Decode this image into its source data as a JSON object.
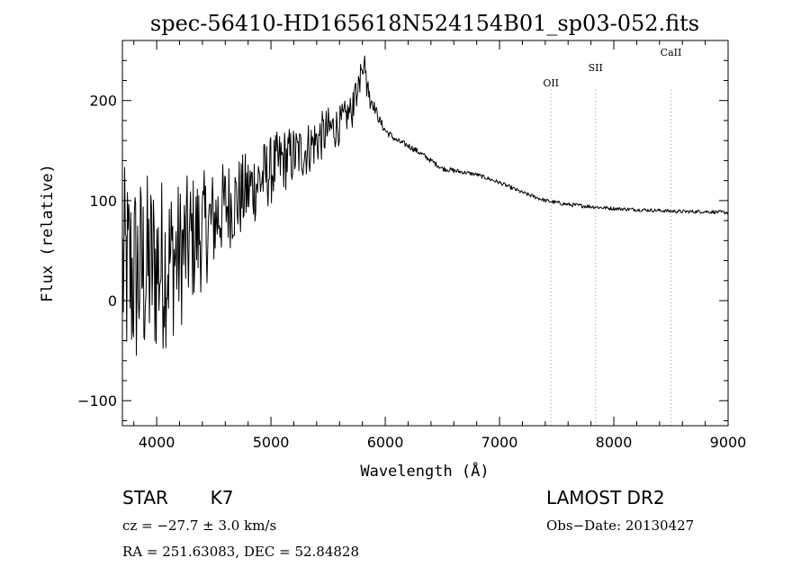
{
  "chart_data": {
    "type": "line",
    "title": "spec-56410-HD165618N524154B01_sp03-052.fits",
    "xlabel": "Wavelength (Å)",
    "ylabel": "Flux (relative)",
    "xlim": [
      3700,
      9000
    ],
    "ylim": [
      -125,
      260
    ],
    "x_ticks": [
      4000,
      5000,
      6000,
      7000,
      8000,
      9000
    ],
    "y_ticks": [
      -100,
      0,
      100,
      200
    ],
    "grid": false,
    "series": [
      {
        "x": [
          3700,
          3800,
          3900,
          4000,
          4100,
          4200,
          4300,
          4400,
          4500,
          4600,
          4700,
          4800,
          4900,
          5000,
          5100,
          5200,
          5300,
          5400,
          5500,
          5600,
          5700,
          5750,
          5800,
          5830,
          5850,
          5900,
          5950,
          6000,
          6100,
          6200,
          6300,
          6400,
          6500,
          6600,
          6700,
          6800,
          6900,
          7000,
          7200,
          7400,
          7600,
          7800,
          8000,
          8200,
          8400,
          8600,
          8800,
          9000
        ],
        "y": [
          30,
          25,
          30,
          35,
          40,
          45,
          60,
          70,
          80,
          95,
          100,
          110,
          120,
          130,
          140,
          145,
          150,
          160,
          170,
          175,
          190,
          205,
          245,
          230,
          210,
          195,
          180,
          170,
          160,
          155,
          148,
          140,
          132,
          130,
          128,
          126,
          122,
          118,
          108,
          100,
          96,
          94,
          92,
          91,
          90,
          89,
          89,
          88
        ],
        "noise": [
          105,
          105,
          100,
          95,
          85,
          75,
          68,
          60,
          52,
          46,
          44,
          40,
          38,
          35,
          33,
          30,
          28,
          26,
          24,
          20,
          16,
          14,
          12,
          10,
          8,
          6,
          5,
          4,
          3,
          3,
          3,
          2.5,
          2.5,
          2.5,
          2,
          2,
          2,
          2,
          2,
          2,
          2,
          2,
          1.8,
          1.8,
          1.8,
          1.8,
          1.8,
          1.8
        ]
      }
    ],
    "annotations": [
      {
        "label": "OII",
        "x": 7450
      },
      {
        "label": "SII",
        "x": 7840
      },
      {
        "label": "CaII",
        "x": 8500
      }
    ]
  },
  "info": {
    "object_type": "STAR",
    "subclass": "K7",
    "survey": "LAMOST DR2",
    "cz": "cz = −27.7 ± 3.0 km/s",
    "obs_date": "Obs−Date: 20130427",
    "coords": "RA = 251.63083, DEC =  52.84828"
  },
  "colors": {
    "line": "#000000",
    "marker_line": "#d08080"
  }
}
